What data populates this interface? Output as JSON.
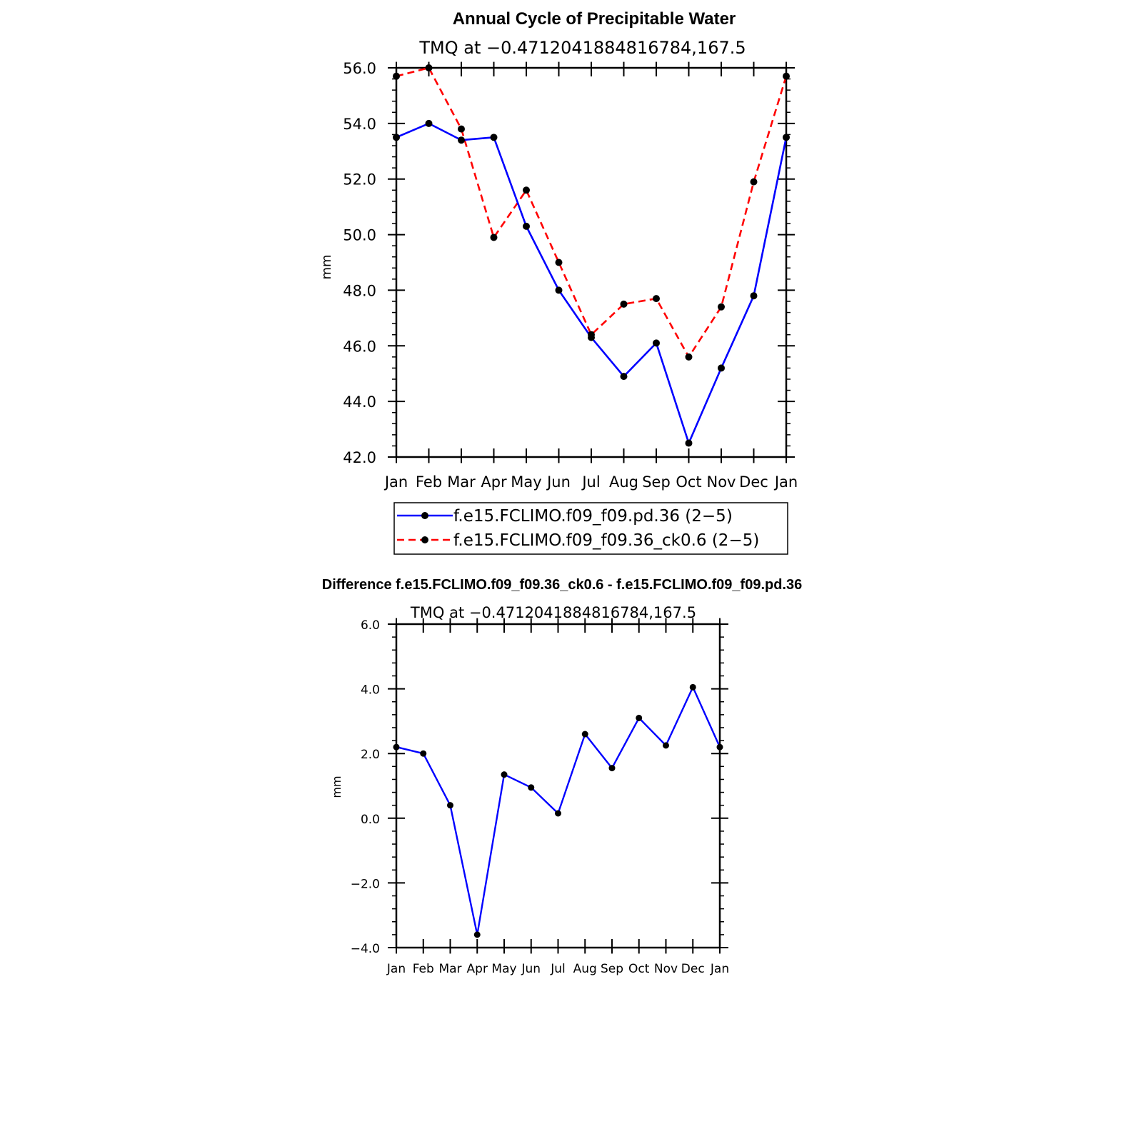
{
  "chart_data": [
    {
      "type": "line",
      "title": "Annual Cycle of Precipitable Water",
      "subtitle": "TMQ at −0.4712041884816784,167.5",
      "xlabel": "",
      "ylabel": "mm",
      "categories": [
        "Jan",
        "Feb",
        "Mar",
        "Apr",
        "May",
        "Jun",
        "Jul",
        "Aug",
        "Sep",
        "Oct",
        "Nov",
        "Dec",
        "Jan"
      ],
      "yticks": [
        "42.0",
        "44.0",
        "46.0",
        "48.0",
        "50.0",
        "52.0",
        "54.0",
        "56.0"
      ],
      "ylim": [
        42,
        56
      ],
      "grid": false,
      "legend_position": "bottom",
      "series": [
        {
          "name": "f.e15.FCLIMO.f09_f09.pd.36 (2−5)",
          "color": "#0000ff",
          "dash": "solid",
          "marker": "filled-circle",
          "values": [
            53.5,
            54.0,
            53.4,
            53.5,
            50.3,
            48.0,
            46.3,
            44.9,
            46.1,
            42.5,
            45.2,
            47.8,
            53.5
          ]
        },
        {
          "name": "f.e15.FCLIMO.f09_f09.36_ck0.6 (2−5)",
          "color": "#ff0000",
          "dash": "dashed",
          "marker": "filled-circle",
          "values": [
            55.7,
            56.0,
            53.8,
            49.9,
            51.6,
            49.0,
            46.4,
            47.5,
            47.7,
            45.6,
            47.4,
            51.9,
            55.7
          ]
        }
      ]
    },
    {
      "type": "line",
      "title": "Difference f.e15.FCLIMO.f09_f09.36_ck0.6 - f.e15.FCLIMO.f09_f09.pd.36",
      "subtitle": "TMQ at −0.4712041884816784,167.5",
      "xlabel": "",
      "ylabel": "mm",
      "categories": [
        "Jan",
        "Feb",
        "Mar",
        "Apr",
        "May",
        "Jun",
        "Jul",
        "Aug",
        "Sep",
        "Oct",
        "Nov",
        "Dec",
        "Jan"
      ],
      "yticks": [
        "−4.0",
        "−2.0",
        "0.0",
        "2.0",
        "4.0",
        "6.0"
      ],
      "ylim": [
        -4,
        6
      ],
      "grid": false,
      "series": [
        {
          "color": "#0000ff",
          "dash": "solid",
          "marker": "filled-circle",
          "values": [
            2.2,
            2.0,
            0.4,
            -3.6,
            1.35,
            0.95,
            0.15,
            2.6,
            1.55,
            3.1,
            2.25,
            4.05,
            2.2
          ]
        }
      ]
    }
  ]
}
